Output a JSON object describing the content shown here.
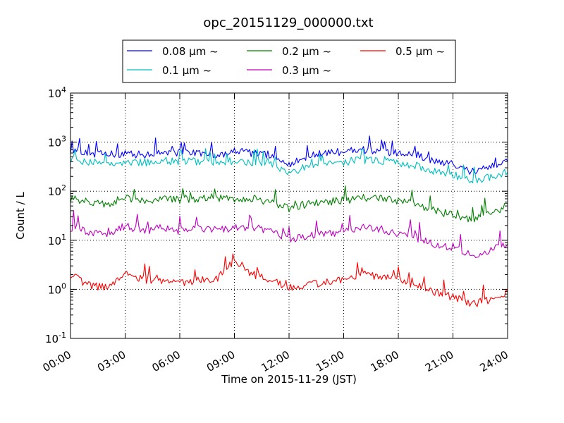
{
  "chart_data": {
    "type": "line",
    "title": "opc_20151129_000000.txt",
    "xlabel": "Time on 2015-11-29 (JST)",
    "ylabel": "Count / L",
    "x_ticks": [
      "00:00",
      "03:00",
      "06:00",
      "09:00",
      "12:00",
      "15:00",
      "18:00",
      "21:00",
      "24:00"
    ],
    "x_tick_hours": [
      0,
      3,
      6,
      9,
      12,
      15,
      18,
      21,
      24
    ],
    "xlim_hours": [
      0,
      24
    ],
    "y_scale": "log",
    "ylim": [
      0.1,
      10000
    ],
    "y_ticks": [
      {
        "base": "10",
        "exp": "-1",
        "value": 0.1
      },
      {
        "base": "10",
        "exp": "0",
        "value": 1
      },
      {
        "base": "10",
        "exp": "1",
        "value": 10
      },
      {
        "base": "10",
        "exp": "2",
        "value": 100
      },
      {
        "base": "10",
        "exp": "3",
        "value": 1000
      },
      {
        "base": "10",
        "exp": "4",
        "value": 10000
      }
    ],
    "grid": true,
    "legend_placement": "top-center",
    "x_hours": [
      0,
      1,
      2,
      3,
      4,
      5,
      6,
      7,
      8,
      9,
      10,
      11,
      12,
      13,
      14,
      15,
      16,
      17,
      18,
      19,
      20,
      21,
      22,
      23,
      24
    ],
    "series": [
      {
        "name": "0.08 μm ~",
        "color": "#0000ff",
        "values": [
          700,
          600,
          550,
          600,
          550,
          650,
          600,
          600,
          550,
          650,
          600,
          550,
          350,
          500,
          600,
          650,
          700,
          650,
          600,
          550,
          400,
          350,
          250,
          300,
          400
        ]
      },
      {
        "name": "0.1 μm ~",
        "color": "#00bfbf",
        "values": [
          450,
          400,
          350,
          400,
          380,
          420,
          400,
          400,
          380,
          420,
          400,
          380,
          230,
          320,
          380,
          400,
          430,
          420,
          380,
          330,
          250,
          220,
          160,
          190,
          250
        ]
      },
      {
        "name": "0.2 μm ~",
        "color": "#008000",
        "values": [
          70,
          60,
          55,
          75,
          60,
          70,
          65,
          70,
          75,
          70,
          70,
          60,
          45,
          55,
          60,
          65,
          75,
          70,
          65,
          55,
          40,
          33,
          25,
          35,
          50
        ]
      },
      {
        "name": "0.3 μm ~",
        "color": "#bf00bf",
        "values": [
          18,
          15,
          12,
          20,
          15,
          18,
          15,
          17,
          17,
          18,
          19,
          15,
          10,
          12,
          13,
          15,
          18,
          17,
          14,
          11,
          8,
          7,
          5,
          6,
          9
        ]
      },
      {
        "name": "0.5 μm ~",
        "color": "#ff0000",
        "values": [
          2.0,
          1.2,
          1.1,
          2.0,
          1.6,
          1.4,
          1.3,
          1.5,
          1.6,
          4.0,
          2.0,
          1.6,
          1.1,
          1.2,
          1.4,
          1.5,
          2.0,
          1.8,
          1.5,
          1.2,
          0.9,
          0.7,
          0.5,
          0.6,
          0.9
        ]
      }
    ]
  }
}
